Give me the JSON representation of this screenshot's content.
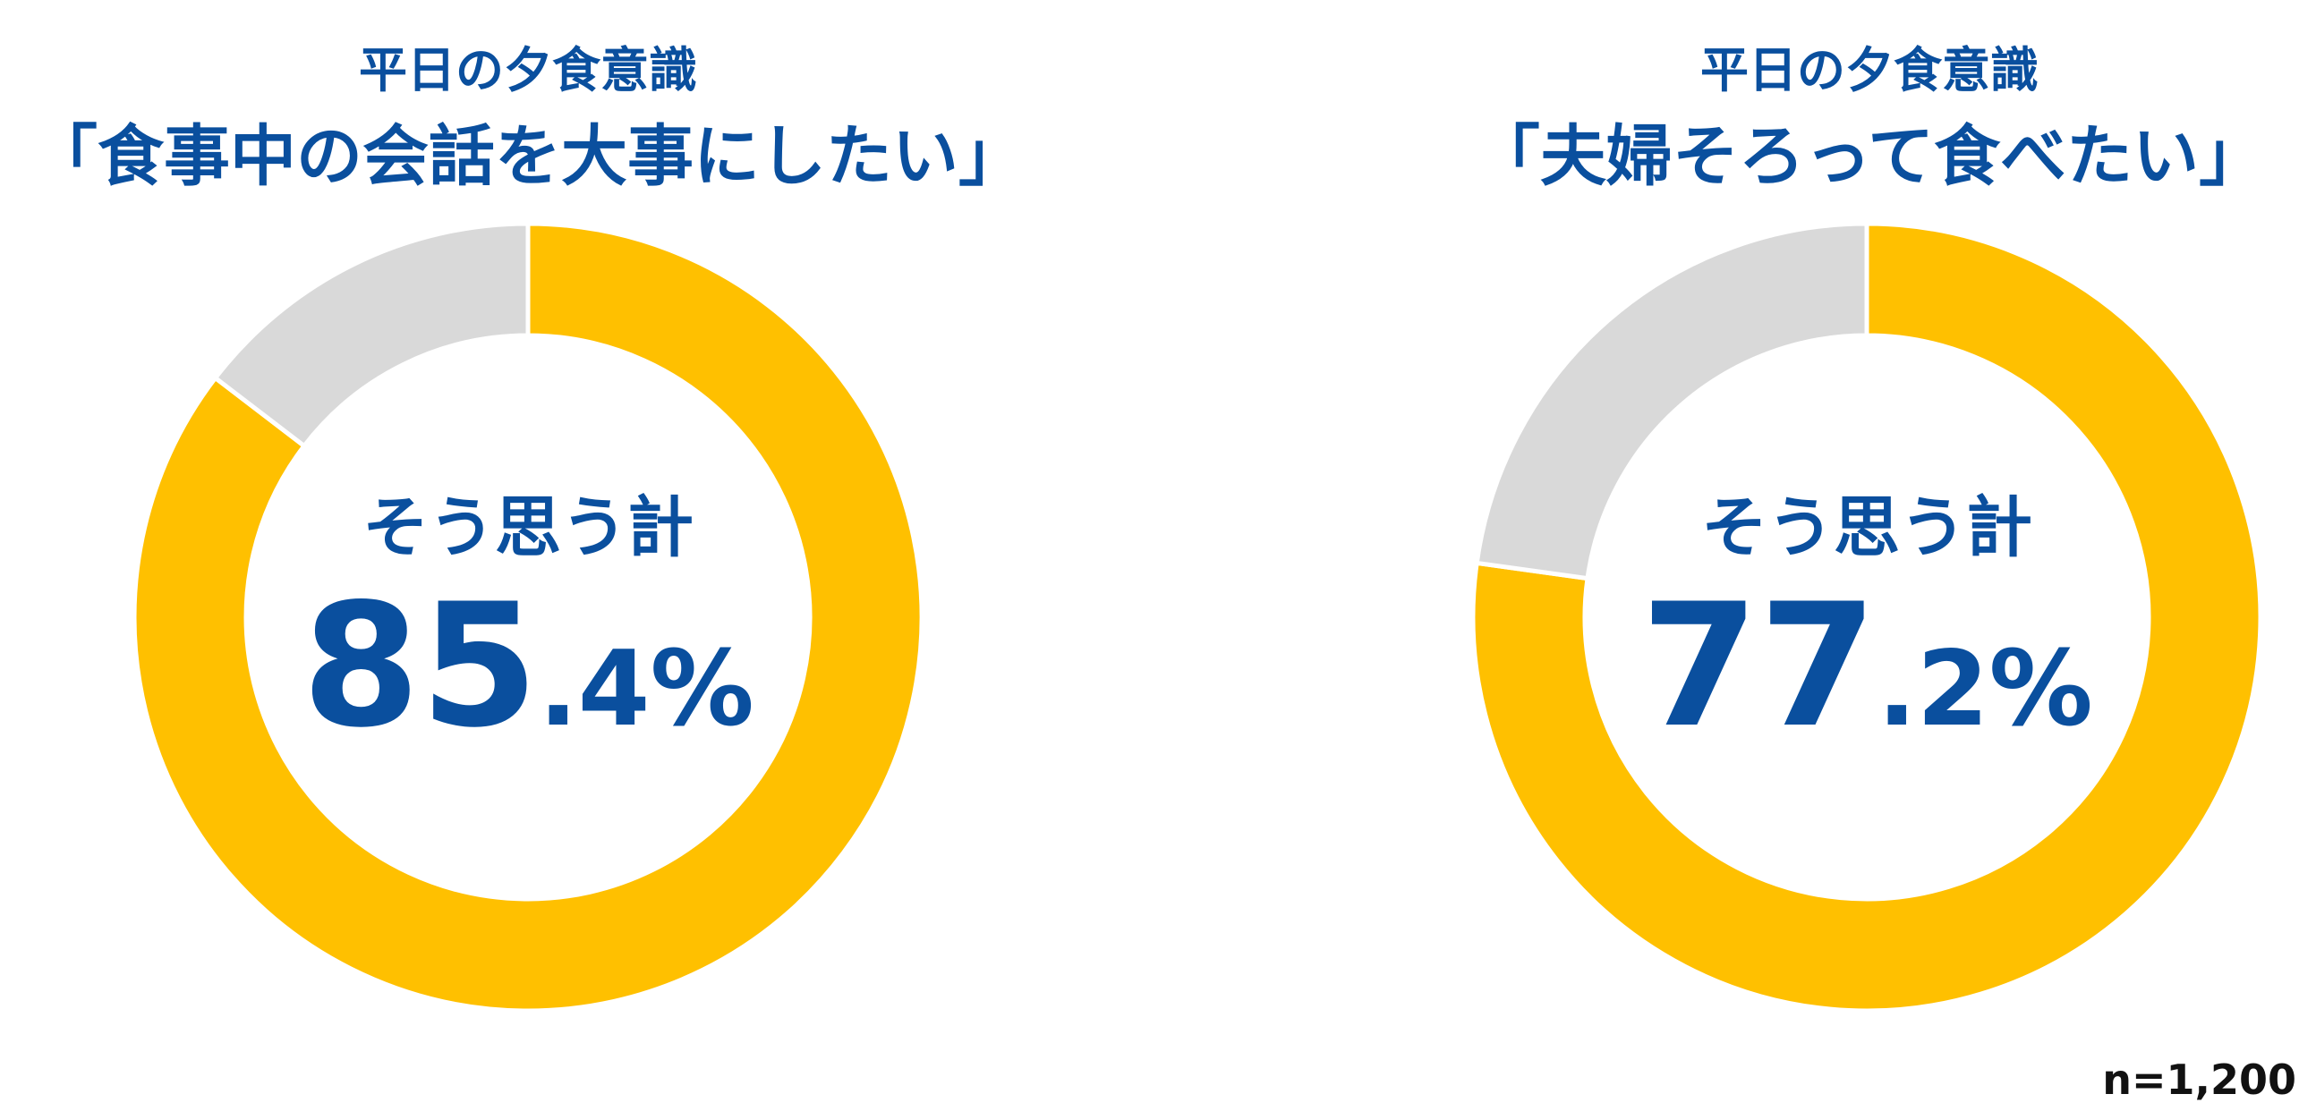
{
  "colors": {
    "accent": "#FFC000",
    "remainder": "#D9D9D9",
    "text": "#0A4F9E",
    "separator": "#FFFFFF"
  },
  "chart_data": [
    {
      "type": "pie",
      "title": "平日の夕食意識",
      "subtitle": "「食事中の会話を大事にしたい」",
      "center_label": "そう思う計",
      "value_main": "85",
      "value_decimal": ".4%",
      "slices": [
        {
          "label": "そう思う計",
          "value": 85.4
        },
        {
          "label": "",
          "value": 14.6
        }
      ]
    },
    {
      "type": "pie",
      "title": "平日の夕食意識",
      "subtitle": "「夫婦そろって食べたい」",
      "center_label": "そう思う計",
      "value_main": "77",
      "value_decimal": ".2%",
      "slices": [
        {
          "label": "そう思う計",
          "value": 77.2
        },
        {
          "label": "",
          "value": 22.8
        }
      ]
    }
  ],
  "sample_size": "n=1,200"
}
